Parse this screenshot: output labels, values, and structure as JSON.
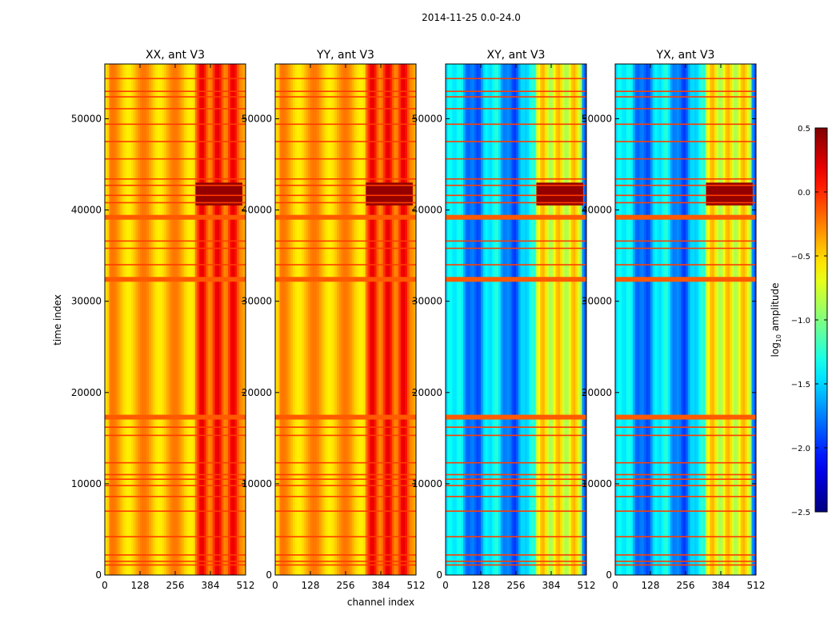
{
  "chart_data": {
    "type": "heatmap",
    "suptitle": "2014-11-25 0.0-24.0",
    "xlabel": "channel index",
    "ylabel": "time index",
    "xlim": [
      0,
      512
    ],
    "ylim": [
      0,
      56000
    ],
    "xticks": [
      0,
      128,
      256,
      384,
      512
    ],
    "yticks": [
      0,
      10000,
      20000,
      30000,
      40000,
      50000
    ],
    "colorbar": {
      "label": "log10 amplitude",
      "label_base": "log",
      "label_sub": "10",
      "label_tail": " amplitude",
      "range": [
        -2.5,
        0.5
      ],
      "ticks": [
        "0.5",
        "0.0",
        "−0.5",
        "−1.0",
        "−1.5",
        "−2.0",
        "−2.5"
      ],
      "colormap": "jet"
    },
    "panels": [
      {
        "title": "XX, ant V3",
        "kind": "auto",
        "base_level": 0.7,
        "band_level": 0.82,
        "block_level": 0.98
      },
      {
        "title": "YY, ant V3",
        "kind": "auto",
        "base_level": 0.7,
        "band_level": 0.82,
        "block_level": 0.98
      },
      {
        "title": "XY, ant V3",
        "kind": "cross",
        "base_level": 0.3,
        "band_level": 0.62,
        "block_level": 0.98
      },
      {
        "title": "YX, ant V3",
        "kind": "cross",
        "base_level": 0.3,
        "band_level": 0.62,
        "block_level": 0.98
      }
    ],
    "flag_rows_thick": [
      17300,
      39200,
      32400
    ],
    "flag_rows_thin": [
      1100,
      1500,
      2200,
      4200,
      7000,
      8600,
      9800,
      10500,
      11000,
      12300,
      15300,
      16200,
      34000,
      35800,
      36600,
      40800,
      41600,
      42700,
      43400,
      45600,
      47500,
      49400,
      51100,
      52400,
      53000,
      54400
    ],
    "saturated_block": {
      "time": [
        40500,
        43000
      ],
      "channel": [
        330,
        500
      ]
    }
  }
}
